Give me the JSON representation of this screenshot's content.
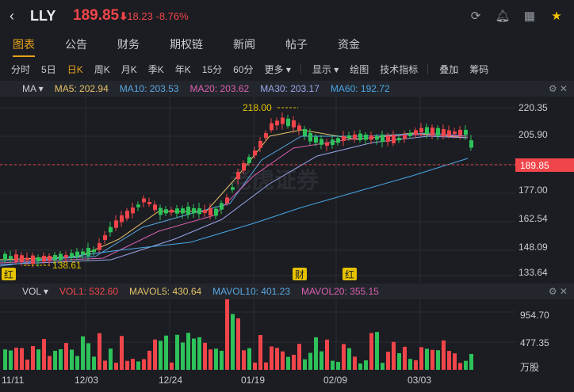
{
  "header": {
    "symbol": "LLY",
    "price": "189.85",
    "price_arrow": "⬇",
    "change": "-18.23",
    "change_pct": "-8.76%",
    "icons": [
      "refresh-icon",
      "bell-icon",
      "grid-icon",
      "star-icon"
    ]
  },
  "tabs": [
    {
      "label": "图表",
      "active": true
    },
    {
      "label": "公告"
    },
    {
      "label": "财务"
    },
    {
      "label": "期权链"
    },
    {
      "label": "新闻"
    },
    {
      "label": "帖子"
    },
    {
      "label": "资金"
    }
  ],
  "periods": {
    "items": [
      "分时",
      "5日",
      "日K",
      "周K",
      "月K",
      "季K",
      "年K",
      "15分",
      "60分"
    ],
    "active": "日K",
    "more": "更多",
    "display": "显示",
    "draw": "绘图",
    "indicators": "技术指标",
    "overlay": "叠加",
    "chips": "筹码"
  },
  "ma_legend": {
    "label": "MA",
    "ma5": "MA5: 202.94",
    "ma10": "MA10: 203.53",
    "ma20": "MA20: 203.62",
    "ma30": "MA30: 203.17",
    "ma60": "MA60: 192.72"
  },
  "vol_legend": {
    "label": "VOL",
    "vol1": "VOL1: 532.60",
    "mavol5": "MAVOL5: 430.64",
    "mavol10": "MAVOL10: 401.23",
    "mavol20": "MAVOL20: 355.15"
  },
  "colors": {
    "up": "#2ec25a",
    "down": "#f0454a",
    "ma5": "#e6c26a",
    "ma10": "#59a7e0",
    "ma20": "#d960b0",
    "ma30": "#9aa6e8",
    "ma60": "#4aa6e6",
    "accent": "#e6a21a"
  },
  "chart_data": {
    "type": "candlestick",
    "price_axis": [
      "220.35",
      "205.90",
      "189.85",
      "177.00",
      "162.54",
      "148.09",
      "133.64"
    ],
    "vol_axis": [
      "954.70",
      "477.35",
      "万股"
    ],
    "dates": [
      "11/11",
      "12/03",
      "12/24",
      "01/19",
      "02/09",
      "03/03"
    ],
    "high_label": "218.00",
    "low_label": "138.61",
    "last_price_label": "189.85",
    "markers": [
      "红",
      "财",
      "红"
    ]
  },
  "watermark": "老虎证券"
}
